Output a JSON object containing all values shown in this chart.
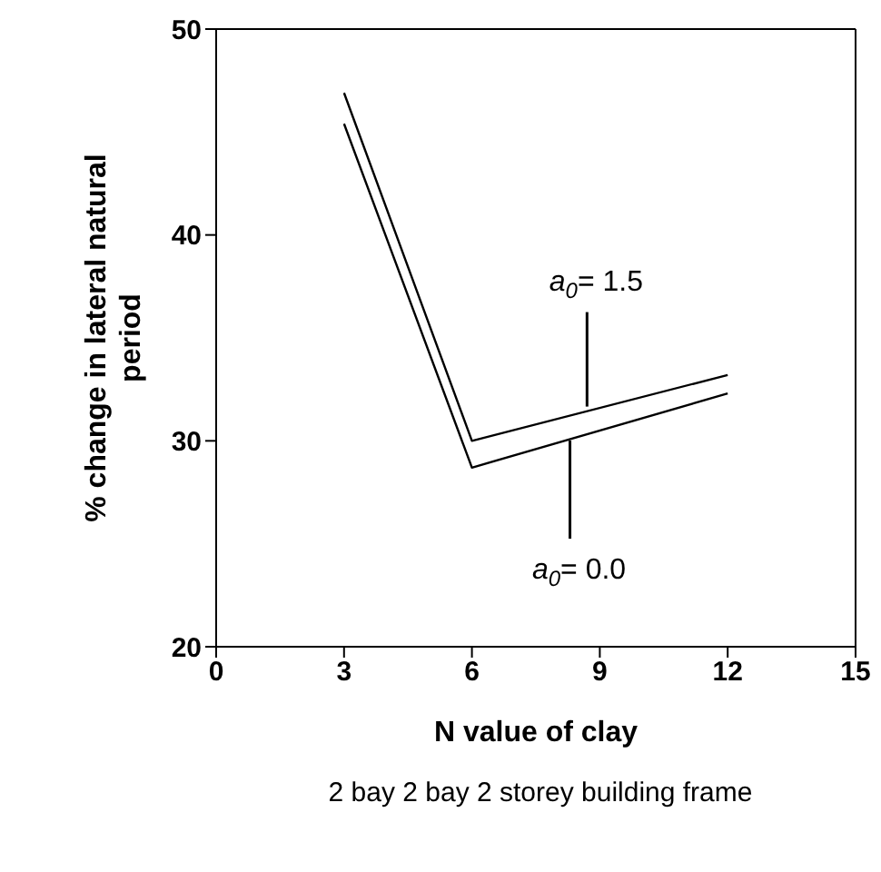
{
  "chart_data": {
    "type": "line",
    "xlabel": "N value of clay",
    "ylabel": "% change in lateral natural period",
    "x": [
      3,
      6,
      12
    ],
    "series": [
      {
        "color": "#000000",
        "values": [
          46.9,
          30.0,
          33.2
        ]
      },
      {
        "color": "#000000",
        "values": [
          45.4,
          28.7,
          32.3
        ]
      }
    ],
    "xlim": [
      0,
      15
    ],
    "xticks": [
      0,
      3,
      6,
      9,
      12,
      15
    ],
    "ylim": [
      20,
      50
    ],
    "yticks": [
      20,
      30,
      40,
      50
    ],
    "grid": false,
    "marker": "none",
    "line_style": "solid",
    "annotations": [
      {
        "text": "a$_{0}$= 1.5",
        "x": 8.7,
        "y": 31.4
      },
      {
        "text": "a$_{0}$= 0.0",
        "x": 8.3,
        "y": 30.1
      },
      "2 bay 2 bay 2 storey building frame"
    ]
  }
}
